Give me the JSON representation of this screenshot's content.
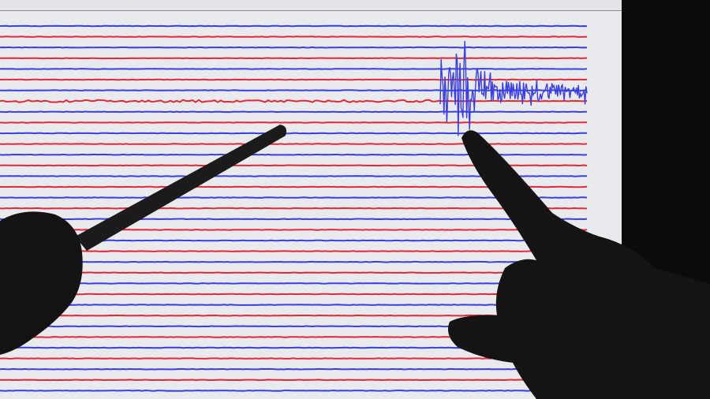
{
  "scene": {
    "description_type": "photo",
    "colors": {
      "screen": "#e9eaee",
      "screen_edge": "#d4d5da",
      "bezel": "#0b0b0c",
      "trace_blue": "#3a3ee6",
      "trace_red": "#e02a35",
      "silhouette": "#161414"
    },
    "icons": [
      "seismogram-traces",
      "pointer-stick",
      "pointing-hand",
      "holding-hand"
    ]
  }
}
